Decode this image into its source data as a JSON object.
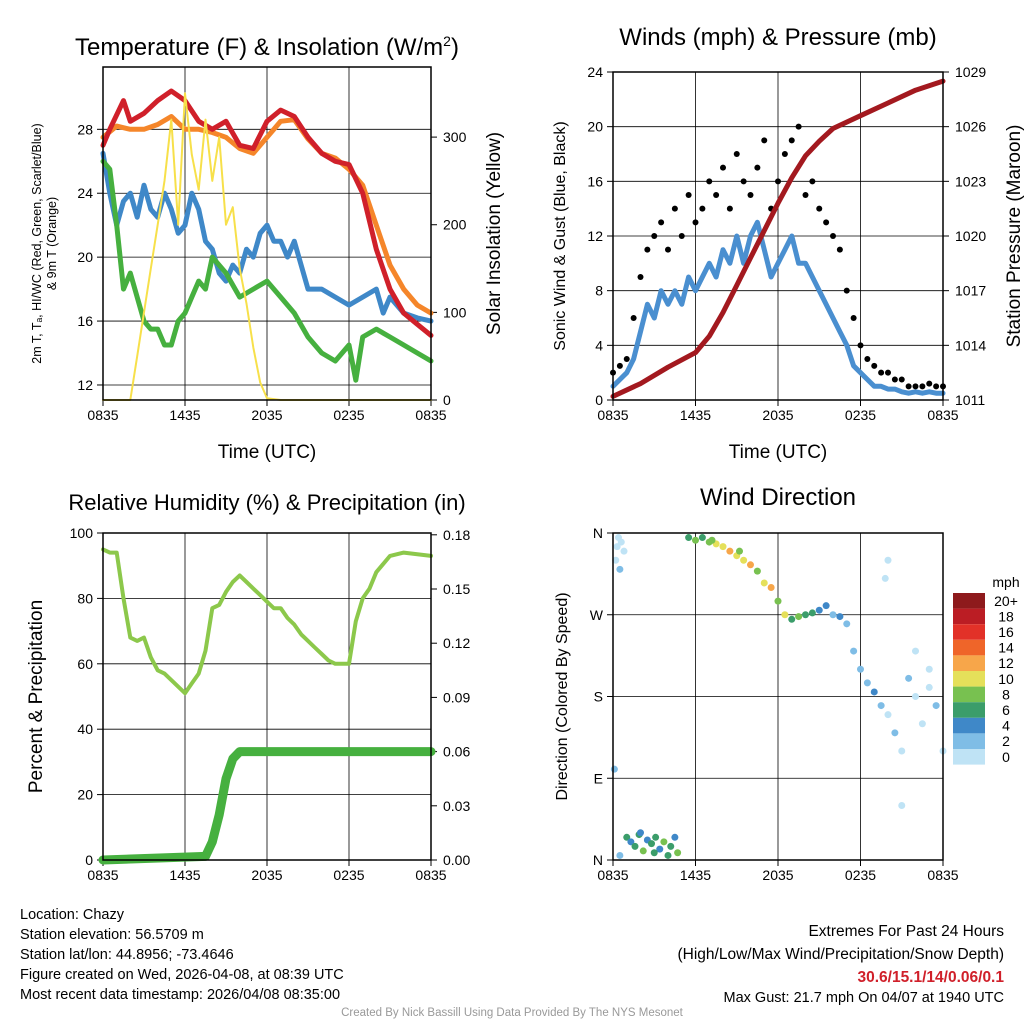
{
  "chart_data": [
    {
      "type": "line",
      "title": "Temperature (F) & Insolation (W/m²)",
      "xlabel": "Time (UTC)",
      "ylabel": "2m T, Td, HI/WC (Red, Green, Scarlet/Blue) & 9m T (Orange)",
      "ylabel_line1": "2m T, Tₐ, HI/WC (Red, Green, Scarlet/Blue)",
      "ylabel_line2": "& 9m T (Orange)",
      "y2label": "Solar Insolation (Yellow)",
      "xticks": [
        "0835",
        "1435",
        "2035",
        "0235",
        "0835"
      ],
      "yticks": [
        12,
        16,
        20,
        24,
        28
      ],
      "y2ticks": [
        0,
        100,
        200,
        300
      ],
      "ylim": [
        11.06,
        31.9
      ],
      "y2lim": [
        0,
        380
      ],
      "xlim": [
        0,
        24
      ],
      "series": [
        {
          "name": "9m T",
          "color": "#f5862a",
          "axis": "left",
          "x": [
            0,
            1,
            2,
            3,
            4,
            5,
            6,
            7,
            8,
            9,
            10,
            11,
            12,
            13,
            14,
            15,
            16,
            17,
            18,
            19,
            20,
            21,
            22,
            23,
            24
          ],
          "y": [
            27.5,
            28.2,
            28,
            28,
            28.3,
            28.8,
            28,
            28,
            27.8,
            27.5,
            26.8,
            26.5,
            27.5,
            28.5,
            28.6,
            27.4,
            26.5,
            26.2,
            25.5,
            24.5,
            22,
            19.5,
            18,
            17,
            16.5
          ]
        },
        {
          "name": "HI/WC",
          "color": "#3f88c8",
          "axis": "left",
          "x": [
            0,
            0.5,
            1,
            1.5,
            2,
            2.5,
            3,
            3.5,
            4,
            4.5,
            5,
            5.5,
            6,
            6.5,
            7,
            7.5,
            8,
            8.5,
            9,
            9.5,
            10,
            10.5,
            11,
            11.5,
            12,
            12.5,
            13,
            13.5,
            14,
            15,
            16,
            17,
            18,
            19,
            20,
            20.5,
            21,
            22,
            23,
            24
          ],
          "y": [
            26.5,
            24,
            22,
            23.5,
            24,
            22.5,
            24.5,
            23,
            22.5,
            24,
            23,
            21.5,
            22,
            24,
            23,
            21,
            20.5,
            19,
            18.5,
            19.5,
            19,
            20.5,
            20,
            21.5,
            22,
            21,
            21,
            20,
            21,
            18,
            18,
            17.5,
            17,
            17.5,
            18,
            16.5,
            17.5,
            16.5,
            16.2,
            16
          ]
        },
        {
          "name": "2m T",
          "color": "#d0202a",
          "axis": "left",
          "x": [
            0,
            0.5,
            1.5,
            2,
            3,
            4,
            5,
            6,
            7,
            8,
            9,
            10,
            11,
            12,
            13,
            14,
            15,
            16,
            17,
            18,
            19,
            20,
            21,
            22,
            23,
            24
          ],
          "y": [
            27,
            28,
            29.8,
            28.5,
            29,
            29.8,
            30.4,
            29.8,
            28.5,
            28,
            28.5,
            27,
            26.8,
            28.5,
            29.2,
            28.8,
            27.5,
            26.5,
            26,
            25.8,
            24,
            20.5,
            18,
            16.5,
            15.8,
            15.1
          ]
        },
        {
          "name": "2m Td",
          "color": "#46b03f",
          "axis": "left",
          "x": [
            0,
            0.5,
            1,
            1.5,
            2,
            3,
            3.5,
            4,
            4.5,
            5,
            5.5,
            6,
            6.5,
            7,
            7.5,
            8,
            9,
            10,
            11,
            12,
            13,
            14,
            15,
            16,
            17,
            18,
            18.5,
            19,
            20,
            21,
            22,
            23,
            24
          ],
          "y": [
            26,
            25.5,
            22,
            18,
            19,
            16,
            15.5,
            15.5,
            14.5,
            14.5,
            16,
            16.5,
            17.5,
            18.5,
            18,
            20,
            19,
            17.5,
            18,
            18.5,
            17.5,
            16.5,
            15,
            14,
            13.5,
            14.5,
            12.3,
            15,
            15.5,
            15,
            14.5,
            14,
            13.5
          ]
        },
        {
          "name": "Solar Insolation",
          "color": "#f7e04a",
          "axis": "right",
          "x": [
            0,
            2,
            2.5,
            3,
            3.5,
            4,
            4.5,
            5,
            5.5,
            6,
            6.5,
            7,
            7.5,
            8,
            8.5,
            9,
            9.5,
            10,
            10.5,
            11,
            11.5,
            12,
            13,
            24
          ],
          "y": [
            0,
            0,
            50,
            100,
            150,
            200,
            250,
            320,
            200,
            350,
            280,
            240,
            320,
            250,
            300,
            200,
            220,
            150,
            110,
            60,
            20,
            2,
            0,
            0
          ]
        }
      ]
    },
    {
      "type": "line",
      "title": "Winds (mph) & Pressure (mb)",
      "xlabel": "Time (UTC)",
      "ylabel": "Sonic Wind & Gust (Blue, Black)",
      "y2label": "Station Pressure (Maroon)",
      "xticks": [
        "0835",
        "1435",
        "2035",
        "0235",
        "0835"
      ],
      "yticks": [
        0,
        4,
        8,
        12,
        16,
        20,
        24
      ],
      "y2ticks": [
        1011,
        1014,
        1017,
        1020,
        1023,
        1026,
        1029
      ],
      "ylim": [
        0,
        24
      ],
      "y2lim": [
        1011,
        1029
      ],
      "xlim": [
        0,
        24
      ],
      "series": [
        {
          "name": "Sonic Wind",
          "color": "#4a8fd0",
          "axis": "left",
          "step": 0.5,
          "y": [
            1,
            1.5,
            2,
            3,
            5,
            7,
            6,
            8,
            7,
            8,
            7,
            9,
            8,
            9,
            10,
            9,
            11,
            10,
            12,
            10,
            12,
            13,
            11,
            9,
            10,
            11,
            12,
            10,
            10,
            9,
            8,
            7,
            6,
            5,
            4,
            2.5,
            2,
            1.5,
            1,
            1,
            0.8,
            0.8,
            0.6,
            0.5,
            0.6,
            0.5,
            0.6,
            0.5,
            0.5
          ]
        },
        {
          "name": "Gust",
          "color": "#000000",
          "axis": "left",
          "marker": "dot",
          "step": 0.5,
          "y": [
            2,
            2.5,
            3,
            6,
            9,
            11,
            12,
            13,
            11,
            14,
            12,
            15,
            13,
            14,
            16,
            15,
            17,
            14,
            18,
            16,
            15,
            17,
            19,
            14,
            16,
            18,
            19,
            20,
            15,
            16,
            14,
            13,
            12,
            11,
            8,
            6,
            4,
            3,
            2.5,
            2,
            2,
            1.5,
            1.5,
            1,
            1,
            1,
            1.2,
            1,
            1
          ]
        },
        {
          "name": "Station Pressure",
          "color": "#a3191f",
          "axis": "right",
          "x": [
            0,
            2,
            4,
            6,
            7,
            8,
            9,
            10,
            11,
            12,
            13,
            14,
            15,
            16,
            18,
            20,
            22,
            24
          ],
          "y": [
            1011.2,
            1011.9,
            1012.8,
            1013.6,
            1014.5,
            1015.8,
            1017.3,
            1018.8,
            1020.3,
            1021.8,
            1023.2,
            1024.4,
            1025.2,
            1025.9,
            1026.6,
            1027.3,
            1028,
            1028.5
          ]
        }
      ]
    },
    {
      "type": "line",
      "title": "Relative Humidity (%) & Precipitation (in)",
      "ylabel": "Percent & Precipitation",
      "xticks": [
        "0835",
        "1435",
        "2035",
        "0235",
        "0835"
      ],
      "yticks": [
        0,
        20,
        40,
        60,
        80,
        100
      ],
      "y2ticks": [
        "0.00",
        "0.03",
        "0.06",
        "0.09",
        "0.12",
        "0.15",
        "0.18"
      ],
      "ylim": [
        0,
        100
      ],
      "y2lim": [
        0,
        0.181
      ],
      "xlim": [
        0,
        24
      ],
      "series": [
        {
          "name": "Relative Humidity",
          "color": "#8cc84b",
          "axis": "left",
          "x": [
            0,
            0.5,
            1,
            1.5,
            2,
            2.5,
            3,
            3.5,
            4,
            4.5,
            5,
            5.5,
            6,
            6.5,
            7,
            7.5,
            8,
            8.5,
            9,
            9.5,
            10,
            10.5,
            11,
            11.5,
            12,
            12.5,
            13,
            13.5,
            14,
            14.5,
            15,
            15.5,
            16,
            16.5,
            17,
            18,
            18.5,
            19,
            19.5,
            20,
            21,
            22,
            24
          ],
          "y": [
            95,
            94,
            94,
            80,
            68,
            67,
            68,
            62,
            58,
            57,
            55,
            53,
            51,
            54,
            57,
            64,
            77,
            78,
            82,
            85,
            87,
            85,
            83,
            81,
            79,
            77,
            77,
            74,
            72,
            69,
            67,
            65,
            63,
            61,
            60,
            60,
            73,
            80,
            83,
            88,
            93,
            94,
            93
          ]
        },
        {
          "name": "Precipitation",
          "color": "#46b03f",
          "axis": "right",
          "x": [
            0,
            7.5,
            8,
            8.5,
            9,
            9.5,
            10,
            24
          ],
          "y": [
            0,
            0.002,
            0.01,
            0.025,
            0.045,
            0.056,
            0.06,
            0.06
          ]
        }
      ]
    },
    {
      "type": "scatter",
      "title": "Wind Direction",
      "ylabel": "Direction (Colored By Speed)",
      "xticks": [
        "0835",
        "1435",
        "2035",
        "0235",
        "0835"
      ],
      "yticks": [
        "N",
        "E",
        "S",
        "W",
        "N"
      ],
      "ylim": [
        0,
        360
      ],
      "xlim": [
        0,
        24
      ],
      "legend_title": "mph",
      "legend_labels": [
        "20+",
        "18",
        "16",
        "14",
        "12",
        "10",
        "8",
        "6",
        "4",
        "2",
        "0"
      ],
      "legend_colors": [
        "#8e1a1c",
        "#bb1d24",
        "#e23128",
        "#ef6529",
        "#f7a64a",
        "#e5e05a",
        "#78c150",
        "#3b9d6a",
        "#3f88c8",
        "#7fbde6",
        "#bfe3f5"
      ],
      "points": [
        [
          0.2,
          330,
          1
        ],
        [
          0.3,
          345,
          1
        ],
        [
          0.4,
          355,
          1
        ],
        [
          0.5,
          320,
          2
        ],
        [
          0.6,
          350,
          1
        ],
        [
          0.8,
          340,
          1
        ],
        [
          0.1,
          100,
          2
        ],
        [
          0.5,
          5,
          2
        ],
        [
          1,
          25,
          6
        ],
        [
          1.3,
          20,
          4
        ],
        [
          1.6,
          15,
          7
        ],
        [
          1.9,
          28,
          6
        ],
        [
          2.2,
          10,
          8
        ],
        [
          2.5,
          22,
          5
        ],
        [
          2.8,
          18,
          7
        ],
        [
          3.1,
          25,
          6
        ],
        [
          3.4,
          12,
          4
        ],
        [
          3.7,
          20,
          8
        ],
        [
          4,
          5,
          6
        ],
        [
          4.2,
          15,
          7
        ],
        [
          4.5,
          25,
          5
        ],
        [
          4.7,
          8,
          8
        ],
        [
          3,
          8,
          6
        ],
        [
          2,
          30,
          4
        ],
        [
          5.5,
          355,
          6
        ],
        [
          6,
          352,
          8
        ],
        [
          6.5,
          355,
          7
        ],
        [
          7,
          350,
          9
        ],
        [
          7.5,
          348,
          10
        ],
        [
          8,
          345,
          11
        ],
        [
          8.5,
          340,
          12
        ],
        [
          9,
          335,
          10
        ],
        [
          9.5,
          330,
          11
        ],
        [
          10,
          325,
          12
        ],
        [
          10.5,
          318,
          9
        ],
        [
          11,
          305,
          10
        ],
        [
          11.5,
          300,
          12
        ],
        [
          7.2,
          352,
          8
        ],
        [
          9.2,
          340,
          9
        ],
        [
          12,
          285,
          8
        ],
        [
          12.5,
          270,
          10
        ],
        [
          13,
          265,
          7
        ],
        [
          13.5,
          268,
          8
        ],
        [
          14,
          270,
          6
        ],
        [
          14.5,
          272,
          7
        ],
        [
          15,
          275,
          5
        ],
        [
          15.5,
          280,
          4
        ],
        [
          16,
          270,
          3
        ],
        [
          16.5,
          268,
          4
        ],
        [
          17,
          260,
          2
        ],
        [
          17.5,
          230,
          2
        ],
        [
          18,
          210,
          3
        ],
        [
          18.5,
          195,
          2
        ],
        [
          19,
          185,
          4
        ],
        [
          19.5,
          170,
          2
        ],
        [
          20,
          160,
          1
        ],
        [
          20.5,
          140,
          2
        ],
        [
          21,
          120,
          1
        ],
        [
          21.5,
          200,
          2
        ],
        [
          22,
          180,
          1
        ],
        [
          22.5,
          150,
          1
        ],
        [
          23,
          190,
          1
        ],
        [
          23.5,
          170,
          2
        ],
        [
          24,
          120,
          1
        ],
        [
          19.8,
          310,
          1
        ],
        [
          20,
          330,
          1
        ],
        [
          21,
          60,
          1
        ],
        [
          22,
          230,
          1
        ],
        [
          23,
          210,
          0
        ]
      ]
    }
  ],
  "footer": {
    "location": "Location: Chazy",
    "elevation": "Station elevation: 56.5709 m",
    "latlon": "Station lat/lon: 44.8956; -73.4646",
    "created": "Figure created on Wed, 2026-04-08, at 08:39 UTC",
    "recent": "Most recent data timestamp: 2026/04/08 08:35:00",
    "extremes_title": "Extremes For Past 24 Hours",
    "extremes_sub": "(High/Low/Max Wind/Precipitation/Snow Depth)",
    "extremes_values": "30.6/15.1/14/0.06/0.1",
    "max_gust": "Max Gust: 21.7 mph On 04/07 at 1940 UTC",
    "credit": "Created By Nick Bassill Using Data Provided By The NYS Mesonet"
  }
}
